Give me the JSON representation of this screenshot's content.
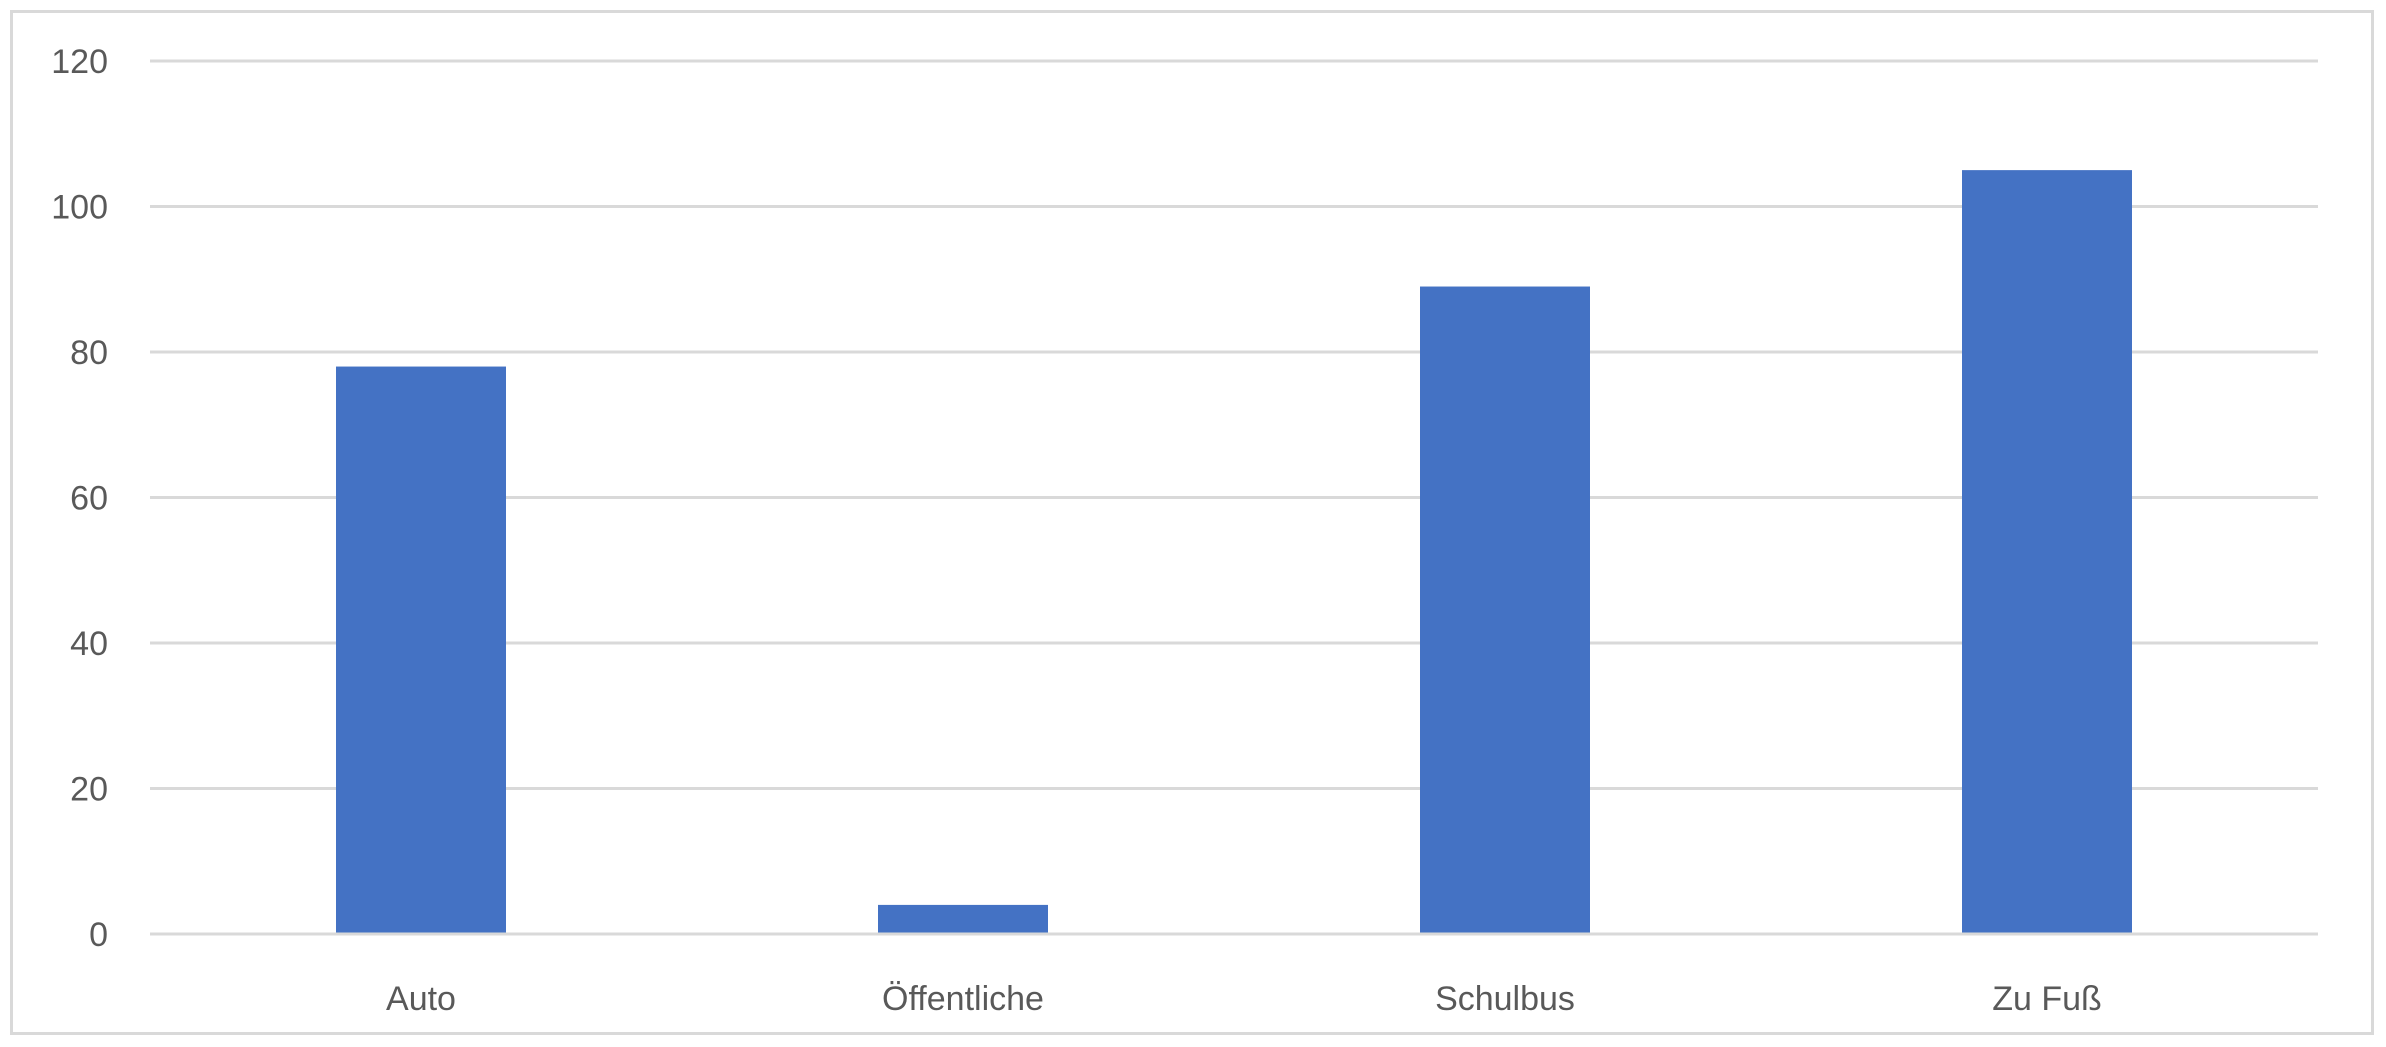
{
  "chart_data": {
    "type": "bar",
    "title": "",
    "xlabel": "",
    "ylabel": "",
    "categories": [
      "Auto",
      "Öffentliche",
      "Schulbus",
      "Zu Fuß"
    ],
    "values": [
      78,
      4,
      89,
      105
    ],
    "ylim": [
      0,
      120
    ],
    "yticks": [
      "0",
      "20",
      "40",
      "60",
      "80",
      "100",
      "120"
    ],
    "grid": true,
    "legend": "none",
    "colors": {
      "bar": "#4472C4",
      "grid": "#d9d9d9",
      "axis": "#d9d9d9",
      "text": "#595959"
    }
  }
}
